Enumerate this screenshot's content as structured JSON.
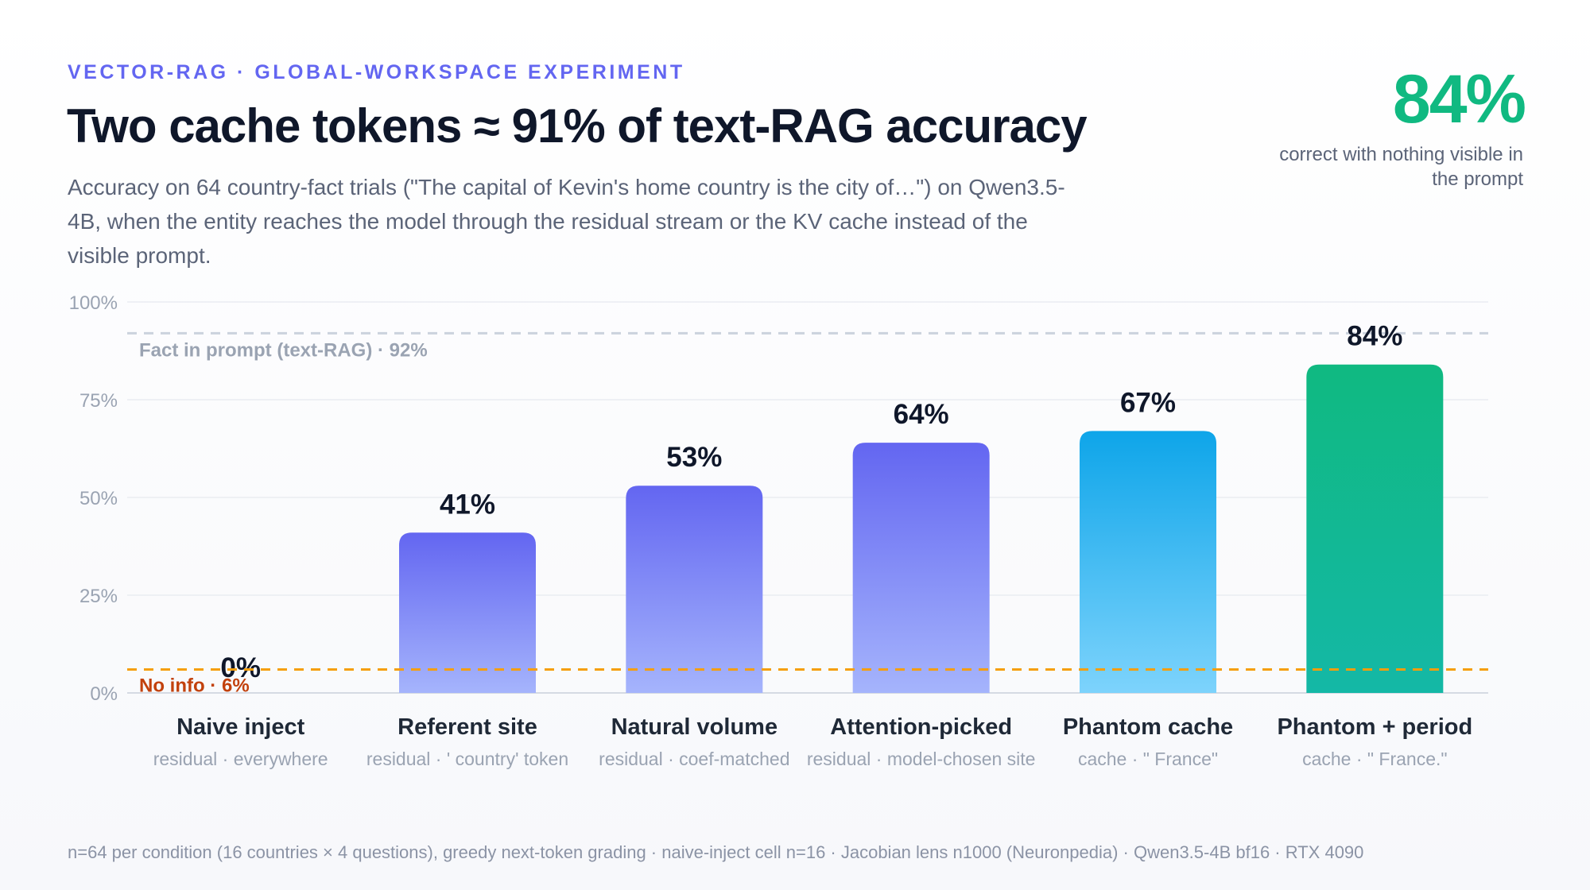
{
  "header": {
    "eyebrow": "VECTOR-RAG · GLOBAL-WORKSPACE EXPERIMENT",
    "title": "Two cache tokens ≈ 91% of text-RAG accuracy",
    "subtitle": "Accuracy on 64 country-fact trials (\"The capital of Kevin's home country is the city of…\") on Qwen3.5-4B, when the entity reaches the model through the residual stream or the KV cache instead of the visible prompt."
  },
  "kpi": {
    "value": "84%",
    "caption": "correct with nothing visible in the prompt"
  },
  "footnote": "n=64 per condition (16 countries × 4 questions), greedy next-token grading · naive-inject cell n=16 · Jacobian lens n1000 (Neuronpedia) · Qwen3.5-4B bf16 · RTX 4090",
  "chart_data": {
    "type": "bar",
    "categories": [
      "Naive inject",
      "Referent site",
      "Natural volume",
      "Attention-picked",
      "Phantom cache",
      "Phantom + period"
    ],
    "sublabels": [
      "residual · everywhere",
      "residual · ' country' token",
      "residual · coef-matched",
      "residual · model-chosen site",
      "cache · \" France\"",
      "cache · \" France.\""
    ],
    "values": [
      0,
      41,
      53,
      64,
      67,
      84
    ],
    "value_labels": [
      "0%",
      "41%",
      "53%",
      "64%",
      "67%",
      "84%"
    ],
    "ylim": [
      0,
      100
    ],
    "yticks": [
      0,
      25,
      50,
      75,
      100
    ],
    "ytick_labels": [
      "0%",
      "25%",
      "50%",
      "75%",
      "100%"
    ],
    "grid": true,
    "reference_lines": [
      {
        "label": "Fact in prompt (text-RAG) · 92%",
        "value": 92,
        "color": "#cbd2dd",
        "label_color": "#9aa3b2"
      },
      {
        "label": "No info · 6%",
        "value": 6,
        "color": "#f59e0b",
        "label_color": "#c2410c"
      }
    ],
    "bar_gradients": [
      [
        "#6366f1",
        "#a5b4fc"
      ],
      [
        "#6366f1",
        "#a5b4fc"
      ],
      [
        "#6366f1",
        "#a5b4fc"
      ],
      [
        "#6366f1",
        "#a5b4fc"
      ],
      [
        "#0ea5e9",
        "#7dd3fc"
      ],
      [
        "#10b981",
        "#14b8a6"
      ]
    ]
  }
}
